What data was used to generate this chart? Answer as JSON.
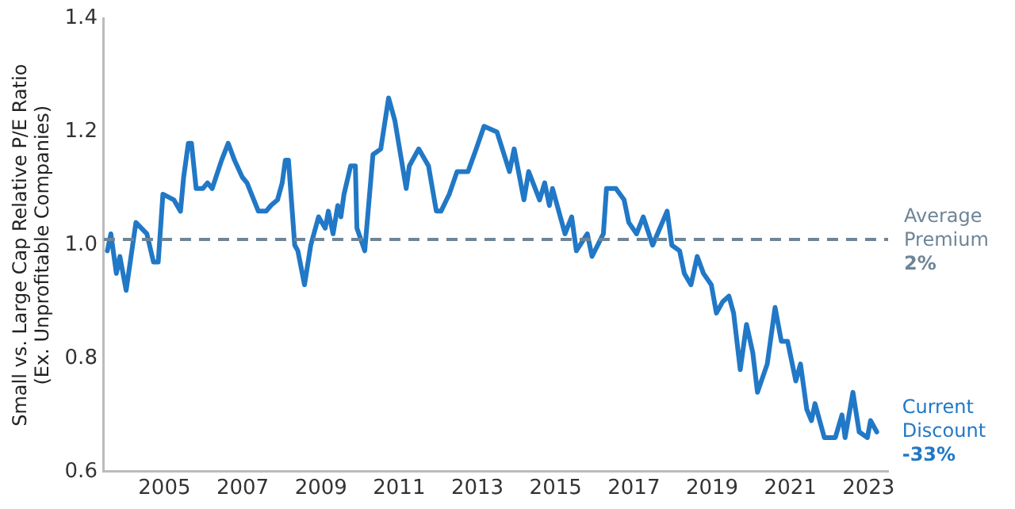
{
  "chart_data": {
    "type": "line",
    "ylabel": "Small vs. Large Cap Relative P/E Ratio\n(Ex. Unprofitable Companies)",
    "xlim": [
      2003.45,
      2023.5
    ],
    "xticks": [
      2005,
      2007,
      2009,
      2011,
      2013,
      2015,
      2017,
      2019,
      2021,
      2023
    ],
    "ylim": [
      0.6,
      1.4
    ],
    "yticks": [
      0.6,
      0.8,
      {
        "value": 1,
        "label": "1.0"
      },
      1.2,
      1.4
    ],
    "grid": false,
    "legend": false,
    "marker": "none",
    "line_style": "solid",
    "series": [
      {
        "color": "#2178c6",
        "x": [
          2003.54,
          2003.63,
          2003.77,
          2003.86,
          2004.02,
          2004.27,
          2004.55,
          2004.72,
          2004.84,
          2004.96,
          2005.24,
          2005.41,
          2005.49,
          2005.61,
          2005.69,
          2005.81,
          2005.98,
          2006.1,
          2006.22,
          2006.46,
          2006.63,
          2006.79,
          2006.99,
          2007.11,
          2007.4,
          2007.6,
          2007.72,
          2007.89,
          2008.01,
          2008.09,
          2008.17,
          2008.33,
          2008.41,
          2008.58,
          2008.74,
          2008.94,
          2009.11,
          2009.19,
          2009.31,
          2009.43,
          2009.51,
          2009.59,
          2009.76,
          2009.88,
          2009.92,
          2010.12,
          2010.33,
          2010.53,
          2010.73,
          2010.89,
          2011.18,
          2011.26,
          2011.5,
          2011.75,
          2011.95,
          2012.07,
          2012.28,
          2012.48,
          2012.76,
          2012.97,
          2013.17,
          2013.5,
          2013.82,
          2013.94,
          2014.19,
          2014.31,
          2014.59,
          2014.72,
          2014.84,
          2014.92,
          2015.24,
          2015.41,
          2015.53,
          2015.81,
          2015.93,
          2016.22,
          2016.3,
          2016.54,
          2016.75,
          2016.87,
          2017.07,
          2017.24,
          2017.48,
          2017.85,
          2017.97,
          2018.17,
          2018.29,
          2018.46,
          2018.62,
          2018.78,
          2018.98,
          2019.11,
          2019.27,
          2019.43,
          2019.55,
          2019.72,
          2019.88,
          2020.04,
          2020.16,
          2020.41,
          2020.61,
          2020.77,
          2020.93,
          2021.14,
          2021.26,
          2021.42,
          2021.54,
          2021.63,
          2021.87,
          2022.15,
          2022.32,
          2022.4,
          2022.6,
          2022.76,
          2022.97,
          2023.05,
          2023.21
        ],
        "values": [
          0.99,
          1.02,
          0.95,
          0.98,
          0.92,
          1.04,
          1.02,
          0.97,
          0.97,
          1.09,
          1.08,
          1.06,
          1.12,
          1.18,
          1.18,
          1.1,
          1.1,
          1.11,
          1.1,
          1.15,
          1.18,
          1.15,
          1.12,
          1.11,
          1.06,
          1.06,
          1.07,
          1.08,
          1.11,
          1.15,
          1.15,
          1.0,
          0.99,
          0.93,
          1.0,
          1.05,
          1.03,
          1.06,
          1.02,
          1.07,
          1.05,
          1.09,
          1.14,
          1.14,
          1.03,
          0.99,
          1.16,
          1.17,
          1.26,
          1.22,
          1.1,
          1.14,
          1.17,
          1.14,
          1.06,
          1.06,
          1.09,
          1.13,
          1.13,
          1.17,
          1.21,
          1.2,
          1.13,
          1.17,
          1.08,
          1.13,
          1.08,
          1.11,
          1.07,
          1.1,
          1.02,
          1.05,
          0.99,
          1.02,
          0.98,
          1.02,
          1.1,
          1.1,
          1.08,
          1.04,
          1.02,
          1.05,
          1.0,
          1.06,
          1.0,
          0.99,
          0.95,
          0.93,
          0.98,
          0.95,
          0.93,
          0.88,
          0.9,
          0.91,
          0.88,
          0.78,
          0.86,
          0.81,
          0.74,
          0.79,
          0.89,
          0.83,
          0.83,
          0.76,
          0.79,
          0.71,
          0.69,
          0.72,
          0.66,
          0.66,
          0.7,
          0.66,
          0.74,
          0.67,
          0.66,
          0.69,
          0.67
        ]
      }
    ],
    "ref_lines": [
      {
        "axis": "y",
        "value": 1.01,
        "label": "Average\nPremium\n2%",
        "color": "#6e8597",
        "line_style": "dashed"
      }
    ],
    "annotations": [
      {
        "text": "Current\nDiscount\n-33%",
        "x": 2023.21,
        "y": 0.67
      }
    ]
  }
}
